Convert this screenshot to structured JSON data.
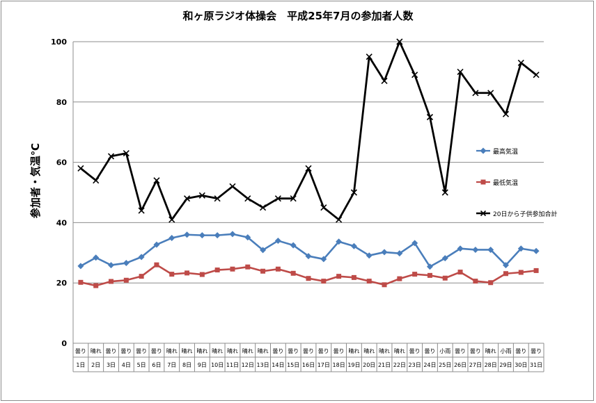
{
  "chart_data": {
    "type": "line",
    "title": "和ヶ原ラジオ体操会　平成25年7月の参加者人数",
    "ylabel": "参加者・気温℃",
    "ylim": [
      0,
      100
    ],
    "yticks": [
      0,
      20,
      40,
      60,
      80,
      100
    ],
    "grid": true,
    "legend_position": "right",
    "categories": [
      "1日",
      "2日",
      "3日",
      "4日",
      "5日",
      "6日",
      "7日",
      "8日",
      "9日",
      "10日",
      "11日",
      "12日",
      "13日",
      "14日",
      "15日",
      "16日",
      "17日",
      "18日",
      "19日",
      "20日",
      "21日",
      "22日",
      "23日",
      "24日",
      "25日",
      "26日",
      "27日",
      "28日",
      "29日",
      "30日",
      "31日"
    ],
    "weather": [
      "曇り",
      "晴れ",
      "曇り",
      "曇り",
      "曇り",
      "曇り",
      "晴れ",
      "晴れ",
      "晴れ",
      "晴れ",
      "晴れ",
      "晴れ",
      "晴れ",
      "曇り",
      "曇り",
      "曇り",
      "曇り",
      "曇り",
      "晴れ",
      "晴れ",
      "晴れ",
      "晴れ",
      "曇り",
      "曇り",
      "小雨",
      "曇り",
      "曇り",
      "晴れ",
      "小雨",
      "曇り",
      "曇り"
    ],
    "series": [
      {
        "name": "最高気温",
        "color": "#4a7ebb",
        "marker": "diamond",
        "values": [
          25.6,
          28.4,
          25.9,
          26.6,
          28.6,
          32.7,
          34.9,
          36.0,
          35.8,
          35.8,
          36.2,
          35.1,
          30.9,
          34.0,
          32.5,
          28.9,
          27.9,
          33.7,
          32.2,
          29.1,
          30.2,
          29.8,
          33.2,
          25.4,
          28.2,
          31.4,
          31.0,
          31.0,
          25.9,
          31.4,
          30.6
        ]
      },
      {
        "name": "最低気温",
        "color": "#be4b48",
        "marker": "square",
        "values": [
          20.2,
          19.1,
          20.5,
          20.9,
          22.2,
          26.0,
          22.9,
          23.3,
          22.8,
          24.3,
          24.6,
          25.3,
          23.9,
          24.6,
          23.2,
          21.5,
          20.6,
          22.2,
          21.8,
          20.6,
          19.4,
          21.4,
          22.9,
          22.5,
          21.6,
          23.6,
          20.6,
          20.1,
          23.1,
          23.5,
          24.1
        ]
      },
      {
        "name": "20日から子供参加合計",
        "color": "#000000",
        "marker": "x",
        "values": [
          58,
          54,
          62,
          63,
          44,
          54,
          41,
          48,
          49,
          48,
          52,
          48,
          45,
          48,
          48,
          58,
          45,
          41,
          50,
          95,
          87,
          100,
          89,
          75,
          50,
          90,
          83,
          83,
          76,
          93,
          89
        ]
      }
    ]
  }
}
